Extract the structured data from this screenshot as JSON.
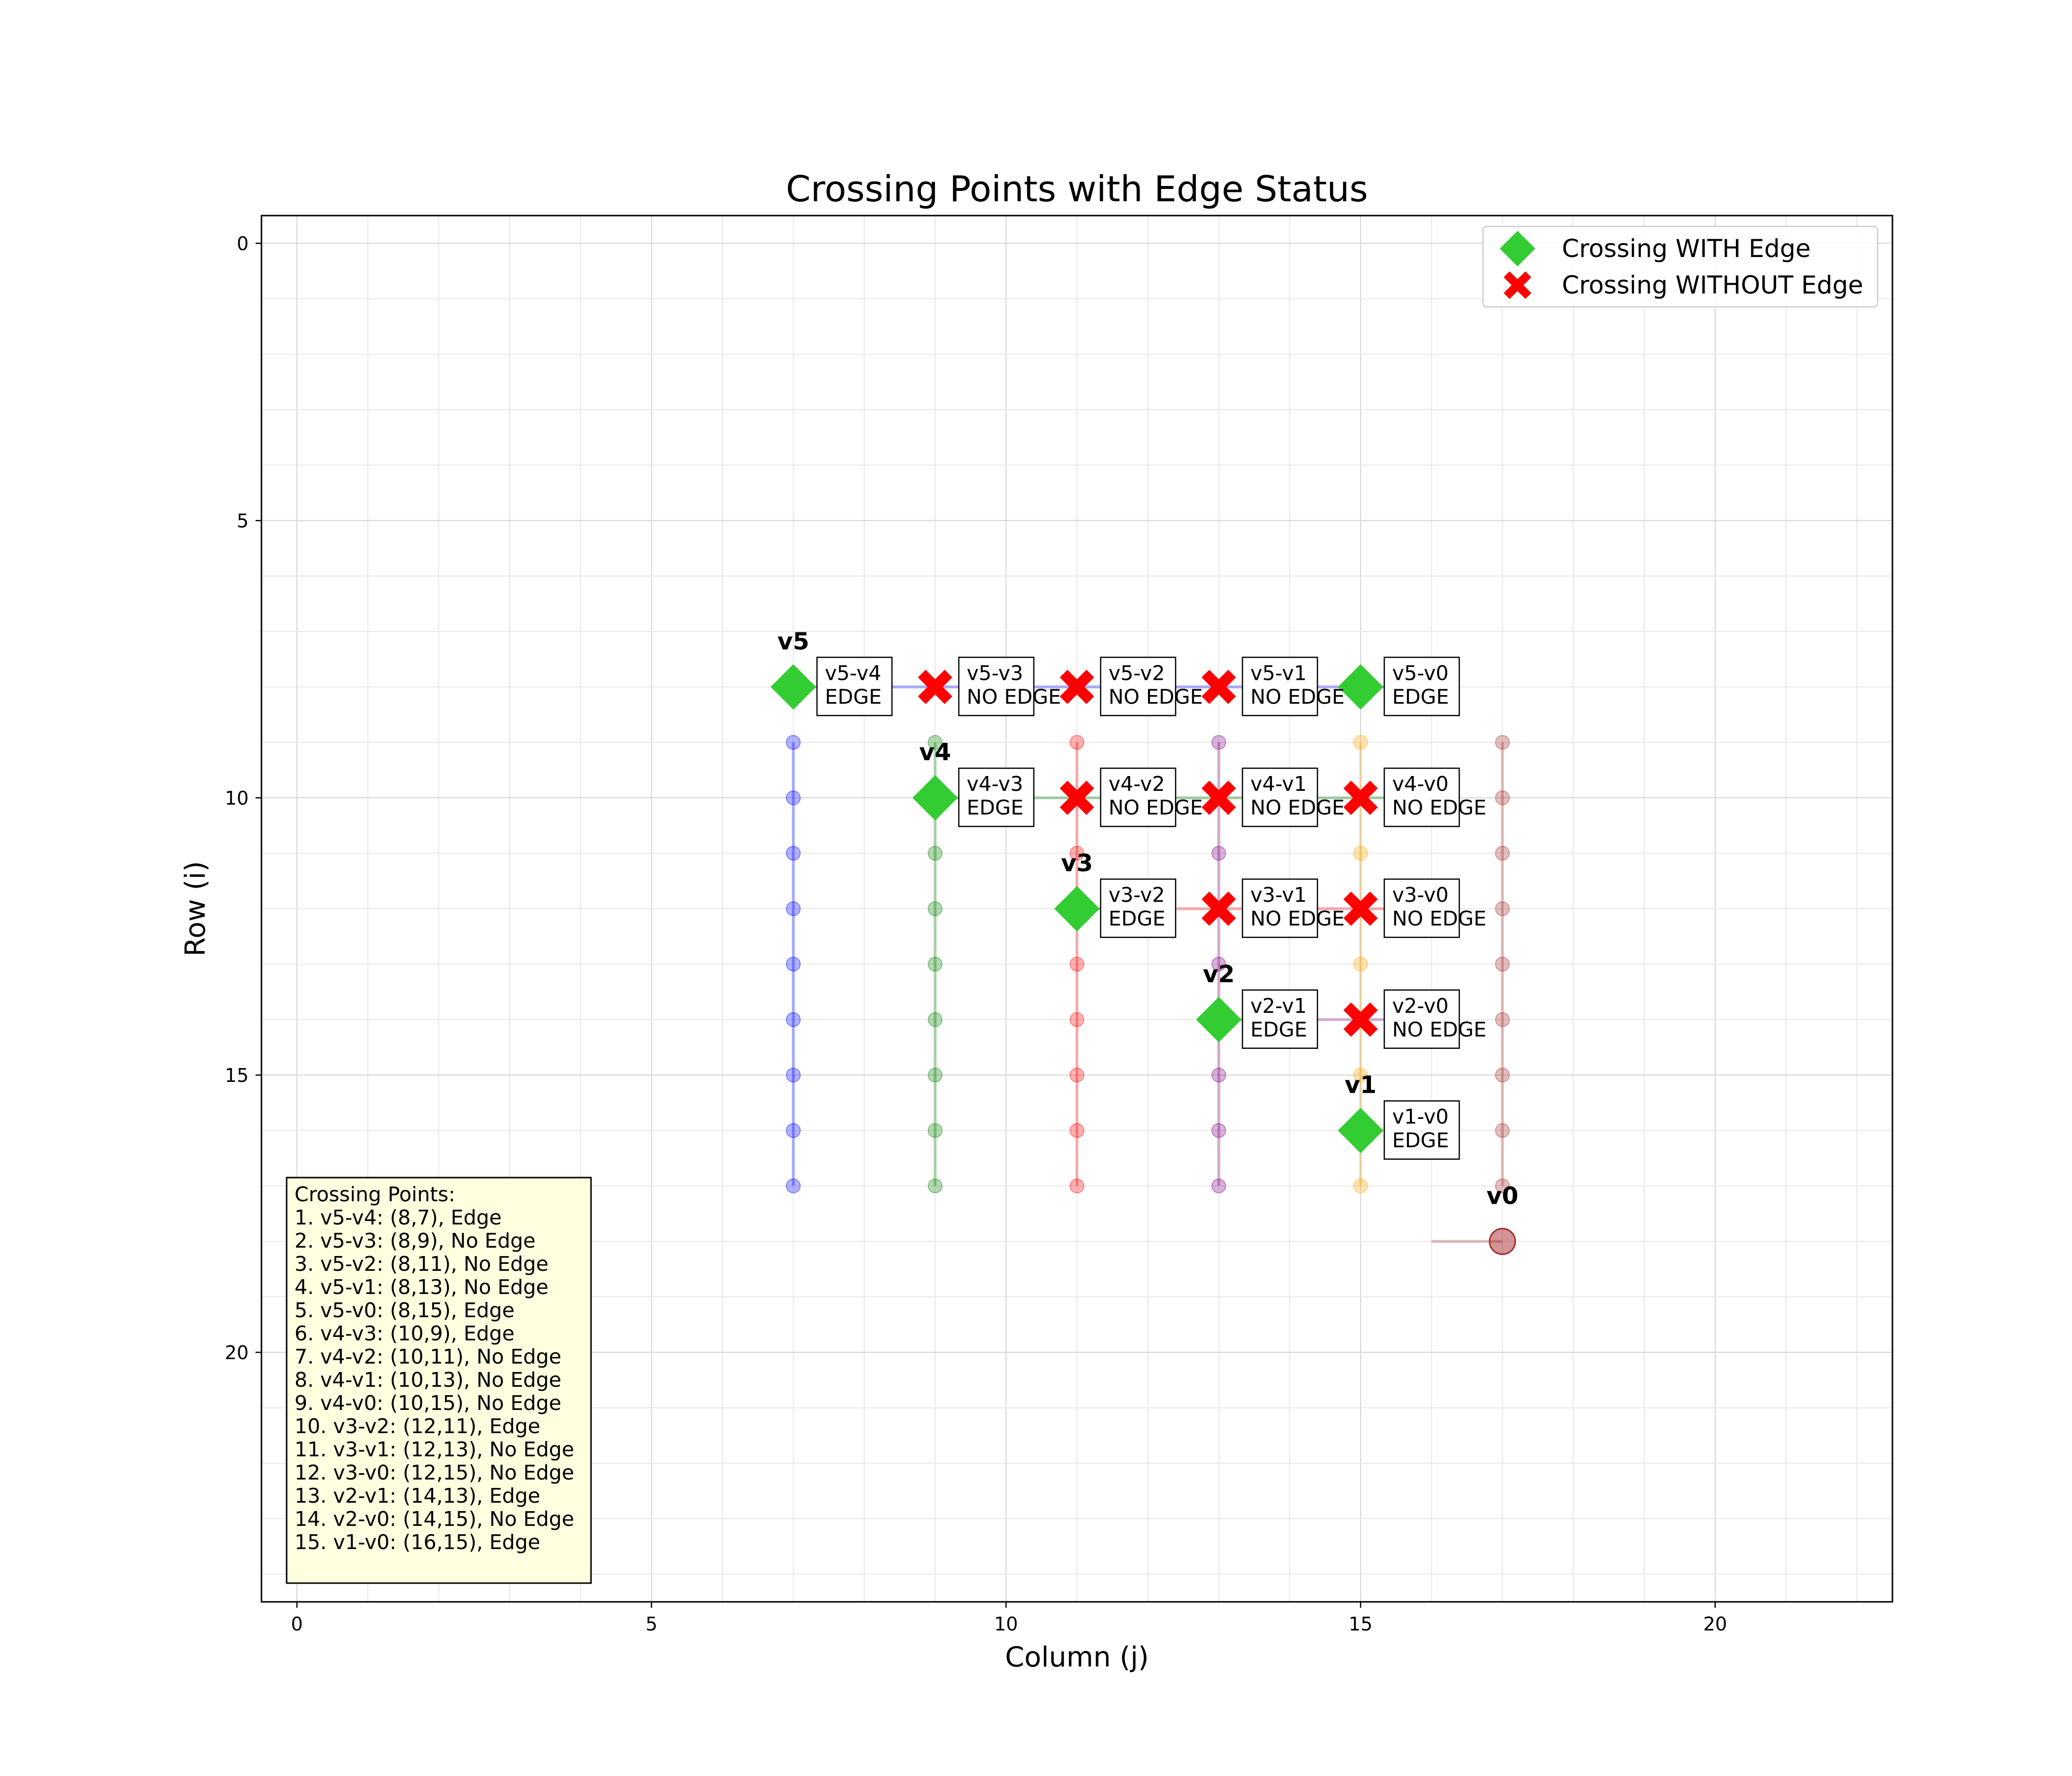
{
  "chart_data": {
    "type": "scatter",
    "title": "Crossing Points with Edge Status",
    "xlabel": "Column (j)",
    "ylabel": "Row (i)",
    "xlim": [
      -0.5,
      22.5
    ],
    "ylim": [
      24.5,
      -0.5
    ],
    "y_inverted": true,
    "grid": true,
    "x_major_ticks": [
      0,
      5,
      10,
      15,
      20
    ],
    "y_major_ticks": [
      0,
      5,
      10,
      15,
      20
    ],
    "legend": {
      "placement": "top-right",
      "entries": [
        {
          "label": "Crossing WITH Edge",
          "marker": "diamond",
          "color": "#33cc33"
        },
        {
          "label": "Crossing WITHOUT Edge",
          "marker": "x",
          "color": "#ff0000"
        }
      ]
    },
    "vertices": [
      {
        "name": "v5",
        "col": 7,
        "start_row": 8,
        "color": "#0000ff"
      },
      {
        "name": "v4",
        "col": 9,
        "start_row": 10,
        "color": "#008000"
      },
      {
        "name": "v3",
        "col": 11,
        "start_row": 12,
        "color": "#ff0000"
      },
      {
        "name": "v2",
        "col": 13,
        "start_row": 14,
        "color": "#800080"
      },
      {
        "name": "v1",
        "col": 15,
        "start_row": 16,
        "color": "#ffa500"
      },
      {
        "name": "v0",
        "col": 17,
        "start_row": 18,
        "color": "#a52a2a"
      }
    ],
    "vertical_path_rows": [
      9,
      17
    ],
    "horizontal_paths": [
      {
        "vertex": "v5",
        "row": 8,
        "col_start": 7,
        "col_end": 16
      },
      {
        "vertex": "v4",
        "row": 10,
        "col_start": 9,
        "col_end": 16
      },
      {
        "vertex": "v3",
        "row": 12,
        "col_start": 11,
        "col_end": 16
      },
      {
        "vertex": "v2",
        "row": 14,
        "col_start": 13,
        "col_end": 16
      },
      {
        "vertex": "v1",
        "row": 16,
        "col_start": 15,
        "col_end": 16
      },
      {
        "vertex": "v0",
        "row": 18,
        "col_start": 16,
        "col_end": 17
      }
    ],
    "crossings": [
      {
        "pair": "v5-v4",
        "row": 8,
        "col": 7,
        "edge": true,
        "label": "EDGE"
      },
      {
        "pair": "v5-v3",
        "row": 8,
        "col": 9,
        "edge": false,
        "label": "NO EDGE"
      },
      {
        "pair": "v5-v2",
        "row": 8,
        "col": 11,
        "edge": false,
        "label": "NO EDGE"
      },
      {
        "pair": "v5-v1",
        "row": 8,
        "col": 13,
        "edge": false,
        "label": "NO EDGE"
      },
      {
        "pair": "v5-v0",
        "row": 8,
        "col": 15,
        "edge": true,
        "label": "EDGE"
      },
      {
        "pair": "v4-v3",
        "row": 10,
        "col": 9,
        "edge": true,
        "label": "EDGE"
      },
      {
        "pair": "v4-v2",
        "row": 10,
        "col": 11,
        "edge": false,
        "label": "NO EDGE"
      },
      {
        "pair": "v4-v1",
        "row": 10,
        "col": 13,
        "edge": false,
        "label": "NO EDGE"
      },
      {
        "pair": "v4-v0",
        "row": 10,
        "col": 15,
        "edge": false,
        "label": "NO EDGE"
      },
      {
        "pair": "v3-v2",
        "row": 12,
        "col": 11,
        "edge": true,
        "label": "EDGE"
      },
      {
        "pair": "v3-v1",
        "row": 12,
        "col": 13,
        "edge": false,
        "label": "NO EDGE"
      },
      {
        "pair": "v3-v0",
        "row": 12,
        "col": 15,
        "edge": false,
        "label": "NO EDGE"
      },
      {
        "pair": "v2-v1",
        "row": 14,
        "col": 13,
        "edge": true,
        "label": "EDGE"
      },
      {
        "pair": "v2-v0",
        "row": 14,
        "col": 15,
        "edge": false,
        "label": "NO EDGE"
      },
      {
        "pair": "v1-v0",
        "row": 16,
        "col": 15,
        "edge": true,
        "label": "EDGE"
      }
    ],
    "info_box": {
      "title": "Crossing Points:",
      "lines": [
        "1. v5-v4: (8,7), Edge",
        "2. v5-v3: (8,9), No Edge",
        "3. v5-v2: (8,11), No Edge",
        "4. v5-v1: (8,13), No Edge",
        "5. v5-v0: (8,15), Edge",
        "6. v4-v3: (10,9), Edge",
        "7. v4-v2: (10,11), No Edge",
        "8. v4-v1: (10,13), No Edge",
        "9. v4-v0: (10,15), No Edge",
        "10. v3-v2: (12,11), Edge",
        "11. v3-v1: (12,13), No Edge",
        "12. v3-v0: (12,15), No Edge",
        "13. v2-v1: (14,13), Edge",
        "14. v2-v0: (14,15), No Edge",
        "15. v1-v0: (16,15), Edge"
      ]
    }
  }
}
